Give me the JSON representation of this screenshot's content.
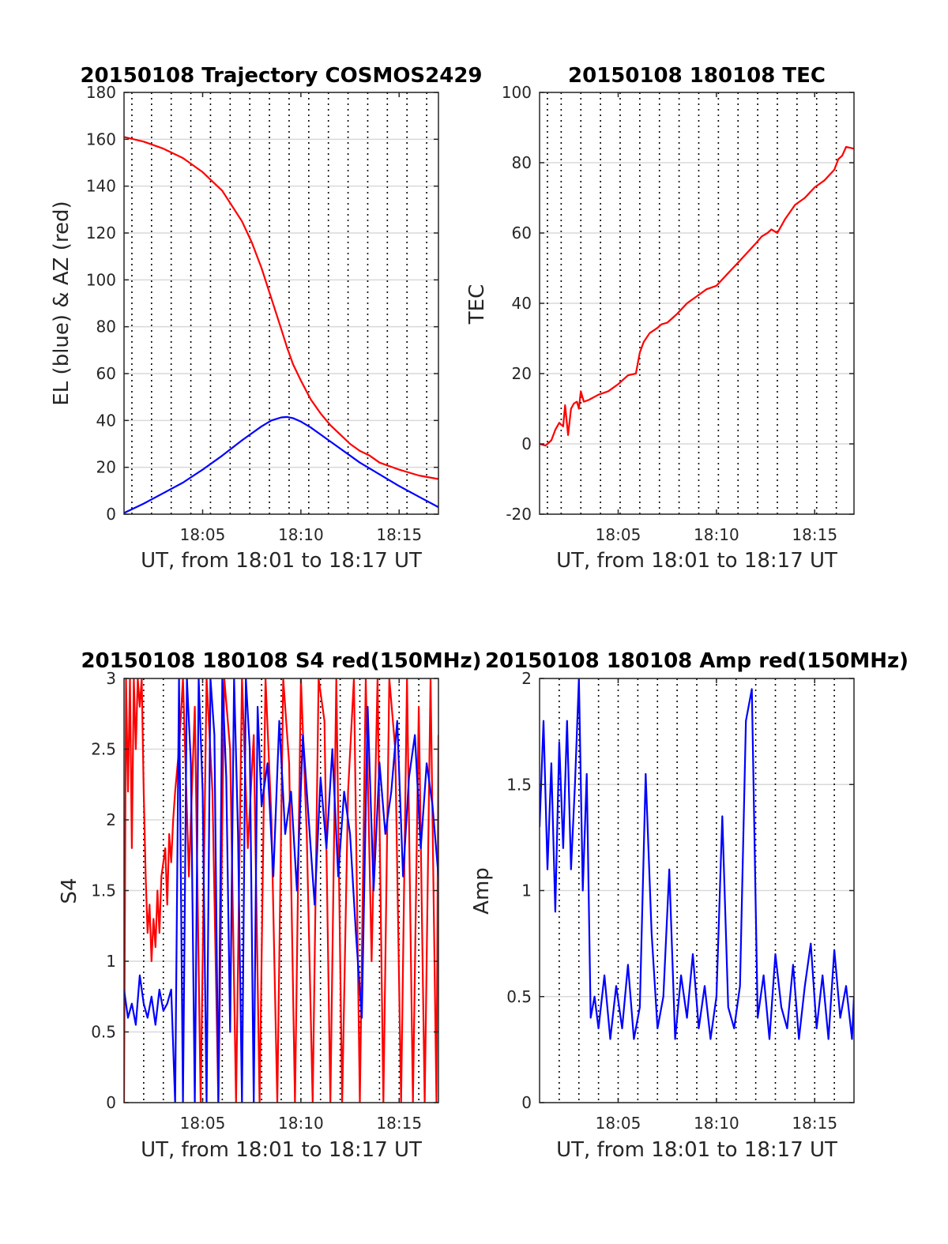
{
  "figure": {
    "background": "#ffffff",
    "grid_color": "#d9d9d9",
    "vline_color": "#000000",
    "colors": {
      "red": "#ff0000",
      "blue": "#0000ff"
    }
  },
  "chart_data": [
    {
      "id": "traj",
      "type": "line",
      "title": "20150108 Trajectory COSMOS2429",
      "xlabel": "UT, from 18:01 to 18:17 UT",
      "ylabel": "EL (blue) & AZ (red)",
      "xlim": [
        1,
        17
      ],
      "ylim": [
        0,
        180
      ],
      "x_tick_values": [
        5,
        10,
        15
      ],
      "x_tick_labels": [
        "18:05",
        "18:10",
        "18:15"
      ],
      "y_tick_values": [
        0,
        20,
        40,
        60,
        80,
        100,
        120,
        140,
        160,
        180
      ],
      "y_tick_labels": [
        "0",
        "20",
        "40",
        "60",
        "80",
        "100",
        "120",
        "140",
        "160",
        "180"
      ],
      "vlines": [
        1.4,
        2.4,
        3.4,
        4.4,
        5.4,
        6.4,
        7.4,
        8.4,
        9.4,
        10.4,
        11.4,
        12.4,
        13.4,
        14.4,
        15.4,
        16.4
      ],
      "grid": true,
      "series": [
        {
          "color": "#ff0000",
          "x": [
            1,
            2,
            3,
            4,
            5,
            6,
            7,
            7.5,
            8,
            8.5,
            9,
            9.3,
            9.6,
            10,
            10.5,
            11,
            11.5,
            12,
            12.5,
            13,
            13.5,
            14,
            15,
            16,
            17
          ],
          "y": [
            161,
            159,
            156,
            152,
            146,
            138,
            125,
            116,
            105,
            92,
            79,
            71,
            64,
            57,
            49,
            43,
            38,
            34,
            30,
            27,
            25,
            22,
            19,
            16.5,
            15
          ]
        },
        {
          "color": "#0000ff",
          "x": [
            1,
            2,
            3,
            4,
            5,
            6,
            7,
            7.5,
            8,
            8.5,
            9,
            9.3,
            9.6,
            10,
            10.5,
            11,
            11.5,
            12,
            12.5,
            13,
            13.5,
            14,
            15,
            16,
            17
          ],
          "y": [
            0.5,
            4.5,
            9,
            13.5,
            19,
            25,
            31.5,
            34.5,
            37.5,
            40,
            41.3,
            41.5,
            41,
            39.5,
            37,
            34,
            31,
            28,
            25,
            22,
            19.5,
            17,
            12,
            7.5,
            3
          ]
        }
      ]
    },
    {
      "id": "tec",
      "type": "line",
      "title": "20150108 180108 TEC",
      "xlabel": "UT, from 18:01 to 18:17 UT",
      "ylabel": "TEC",
      "xlim": [
        1,
        17
      ],
      "ylim": [
        -20,
        100
      ],
      "x_tick_values": [
        5,
        10,
        15
      ],
      "x_tick_labels": [
        "18:05",
        "18:10",
        "18:15"
      ],
      "y_tick_values": [
        -20,
        0,
        20,
        40,
        60,
        80,
        100
      ],
      "y_tick_labels": [
        "-20",
        "0",
        "20",
        "40",
        "60",
        "80",
        "100"
      ],
      "vlines": [
        1.4,
        2.1,
        3.1,
        4.1,
        5.1,
        6.1,
        7.1,
        8.1,
        9.1,
        10.1,
        11.1,
        12.1,
        13.1,
        14.1,
        15.1,
        16.1
      ],
      "grid": true,
      "series": [
        {
          "color": "#ff0000",
          "x": [
            1,
            1.3,
            1.6,
            1.8,
            2,
            2.2,
            2.3,
            2.45,
            2.6,
            2.75,
            2.9,
            3,
            3.1,
            3.25,
            3.5,
            4,
            4.5,
            5,
            5.5,
            5.9,
            6.1,
            6.3,
            6.6,
            7,
            7.2,
            7.5,
            8,
            8.5,
            9,
            9.5,
            10,
            10.5,
            11,
            11.5,
            12,
            12.3,
            12.6,
            12.8,
            13.1,
            13.5,
            14,
            14.5,
            15,
            15.5,
            16,
            16.2,
            16.4,
            16.6,
            17
          ],
          "y": [
            0,
            -0.5,
            1,
            4,
            6,
            5,
            11,
            2.5,
            10,
            11.5,
            12,
            10,
            15,
            12,
            12.5,
            14,
            15,
            17,
            19.5,
            20,
            26,
            29,
            31.5,
            33,
            34,
            34.5,
            37,
            40,
            42,
            44,
            45,
            48,
            51,
            54,
            57,
            59,
            60,
            61,
            60,
            64,
            68,
            70,
            73,
            75,
            78,
            81,
            82,
            84.5,
            84
          ]
        }
      ]
    },
    {
      "id": "s4",
      "type": "line",
      "title": "20150108 180108 S4 red(150MHz)",
      "xlabel": "UT, from 18:01 to 18:17 UT",
      "ylabel": "S4",
      "xlim": [
        1,
        17
      ],
      "ylim": [
        0,
        3
      ],
      "x_tick_values": [
        5,
        10,
        15
      ],
      "x_tick_labels": [
        "18:05",
        "18:10",
        "18:15"
      ],
      "y_tick_values": [
        0,
        0.5,
        1,
        1.5,
        2,
        2.5,
        3
      ],
      "y_tick_labels": [
        "0",
        "0.5",
        "1",
        "1.5",
        "2",
        "2.5",
        "3"
      ],
      "vlines": [
        2,
        3,
        4,
        5,
        6,
        7,
        8,
        9,
        10,
        11,
        12,
        13,
        14,
        15,
        16
      ],
      "grid": true,
      "series": [
        {
          "color": "#ff0000",
          "x": [
            1,
            1.1,
            1.2,
            1.3,
            1.4,
            1.5,
            1.6,
            1.7,
            1.8,
            1.9,
            2,
            2.1,
            2.2,
            2.3,
            2.4,
            2.5,
            2.6,
            2.7,
            2.8,
            2.9,
            3,
            3.1,
            3.2,
            3.3,
            3.4,
            3.5,
            3.6,
            3.8,
            4,
            4.3,
            4.6,
            4.9,
            5.2,
            5.5,
            5.8,
            6.1,
            6.4,
            6.7,
            7,
            7.3,
            7.6,
            7.9,
            8.2,
            8.5,
            8.8,
            9.1,
            9.4,
            9.7,
            10,
            10.3,
            10.6,
            10.9,
            11.2,
            11.5,
            11.8,
            12.1,
            12.4,
            12.7,
            13,
            13.3,
            13.6,
            13.9,
            14.2,
            14.5,
            14.8,
            15.1,
            15.4,
            15.7,
            16,
            16.3,
            16.6,
            16.9,
            17
          ],
          "y": [
            0,
            3,
            2.2,
            3,
            1.8,
            3,
            2.5,
            3,
            2.8,
            3,
            2.2,
            1.6,
            1.2,
            1.4,
            1.0,
            1.3,
            1.1,
            1.5,
            1.2,
            1.6,
            1.7,
            1.8,
            1.4,
            1.9,
            1.7,
            2.0,
            2.2,
            2.5,
            3,
            1.6,
            2.8,
            0,
            3,
            2.2,
            0,
            3,
            2.5,
            0,
            3,
            1.8,
            2.6,
            0,
            3,
            2.0,
            0,
            3,
            2.4,
            0,
            3,
            1.9,
            0,
            3,
            2.7,
            0,
            3,
            0,
            2.2,
            3,
            0,
            3,
            1.0,
            3,
            0,
            3,
            2.5,
            0,
            3,
            0,
            2.8,
            0,
            3,
            0,
            2.6
          ]
        },
        {
          "color": "#0000ff",
          "x": [
            1,
            1.2,
            1.4,
            1.6,
            1.8,
            2,
            2.2,
            2.4,
            2.6,
            2.8,
            3,
            3.2,
            3.4,
            3.6,
            3.8,
            4,
            4.2,
            4.4,
            4.6,
            4.8,
            5,
            5.2,
            5.4,
            5.6,
            5.8,
            6,
            6.2,
            6.4,
            6.6,
            6.8,
            7,
            7.2,
            7.4,
            7.6,
            7.8,
            8,
            8.3,
            8.6,
            8.9,
            9.2,
            9.5,
            9.8,
            10.1,
            10.4,
            10.7,
            11,
            11.3,
            11.6,
            11.9,
            12.2,
            12.5,
            12.8,
            13.1,
            13.4,
            13.7,
            14,
            14.3,
            14.6,
            14.9,
            15.2,
            15.5,
            15.8,
            16.1,
            16.4,
            16.7,
            17
          ],
          "y": [
            0.8,
            0.6,
            0.7,
            0.55,
            0.9,
            0.7,
            0.6,
            0.75,
            0.55,
            0.8,
            0.65,
            0.7,
            0.8,
            0,
            3,
            0,
            3,
            2.4,
            0,
            3,
            2.2,
            0,
            3,
            2.6,
            0,
            3,
            2.3,
            0.5,
            3,
            1.9,
            0,
            3,
            2.5,
            0,
            2.8,
            2.1,
            2.4,
            1.6,
            2.7,
            1.9,
            2.2,
            1.5,
            2.6,
            2.0,
            1.4,
            2.3,
            1.8,
            2.5,
            1.6,
            2.2,
            1.9,
            1.2,
            0.6,
            2.8,
            1.5,
            2.4,
            1.9,
            2.2,
            2.7,
            1.6,
            2.3,
            2.6,
            1.8,
            2.4,
            2.1,
            1.6
          ]
        }
      ]
    },
    {
      "id": "amp",
      "type": "line",
      "title": "20150108 180108 Amp red(150MHz)",
      "xlabel": "UT, from 18:01 to 18:17 UT",
      "ylabel": "Amp",
      "xlim": [
        1,
        17
      ],
      "ylim": [
        0,
        2
      ],
      "x_tick_values": [
        5,
        10,
        15
      ],
      "x_tick_labels": [
        "18:05",
        "18:10",
        "18:15"
      ],
      "y_tick_values": [
        0,
        0.5,
        1,
        1.5,
        2
      ],
      "y_tick_labels": [
        "0",
        "0.5",
        "1",
        "1.5",
        "2"
      ],
      "vlines": [
        2,
        3,
        4,
        5,
        6,
        7,
        8,
        9,
        10,
        11,
        12,
        13,
        14,
        15,
        16
      ],
      "grid": true,
      "series": [
        {
          "color": "#0000ff",
          "x": [
            1,
            1.2,
            1.4,
            1.6,
            1.8,
            2,
            2.2,
            2.4,
            2.6,
            2.8,
            3,
            3.2,
            3.4,
            3.6,
            3.8,
            4,
            4.3,
            4.6,
            4.9,
            5.2,
            5.5,
            5.8,
            6.1,
            6.4,
            6.7,
            7,
            7.3,
            7.6,
            7.9,
            8.2,
            8.5,
            8.8,
            9.1,
            9.4,
            9.7,
            10,
            10.3,
            10.6,
            10.9,
            11.2,
            11.5,
            11.8,
            12.1,
            12.4,
            12.7,
            13,
            13.3,
            13.6,
            13.9,
            14.2,
            14.5,
            14.8,
            15.1,
            15.4,
            15.7,
            16,
            16.3,
            16.6,
            16.9,
            17
          ],
          "y": [
            1.3,
            1.8,
            1.1,
            1.6,
            0.9,
            1.7,
            1.2,
            1.8,
            1.1,
            1.5,
            2.0,
            1.0,
            1.55,
            0.4,
            0.5,
            0.35,
            0.6,
            0.3,
            0.55,
            0.35,
            0.65,
            0.3,
            0.45,
            1.55,
            0.8,
            0.35,
            0.5,
            1.1,
            0.3,
            0.6,
            0.4,
            0.7,
            0.35,
            0.55,
            0.3,
            0.5,
            1.35,
            0.45,
            0.35,
            0.55,
            1.8,
            1.95,
            0.4,
            0.6,
            0.3,
            0.7,
            0.45,
            0.35,
            0.65,
            0.3,
            0.55,
            0.75,
            0.35,
            0.6,
            0.3,
            0.72,
            0.4,
            0.55,
            0.3,
            0.5
          ]
        }
      ]
    }
  ]
}
